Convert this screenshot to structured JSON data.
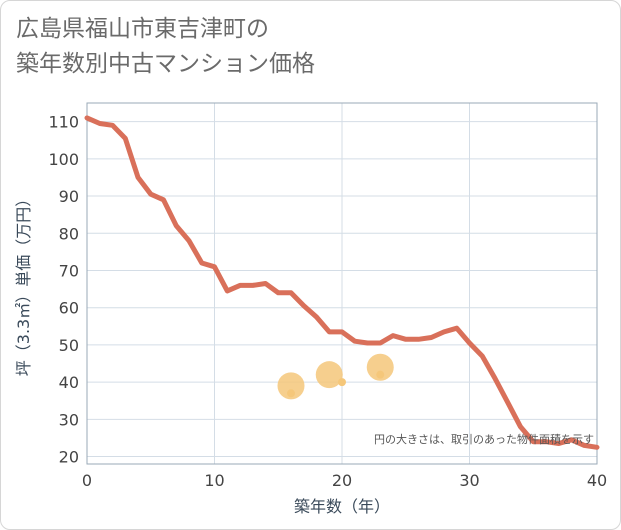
{
  "title_line1": "広島県福山市東吉津町の",
  "title_line2": "築年数別中古マンション価格",
  "colors": {
    "line": "#d9705a",
    "bubble": "#f5c77a",
    "grid": "#d4dde6",
    "plot_border": "#9aa9b7",
    "ytick_text": "#444444",
    "axis_title": "#3a4a5a"
  },
  "chart_data": {
    "type": "line",
    "xlabel": "築年数（年）",
    "ylabel": "坪（3.3㎡）単価（万円）",
    "xlim": [
      0,
      40
    ],
    "ylim": [
      18,
      115
    ],
    "xticks": [
      0,
      10,
      20,
      30,
      40
    ],
    "yticks": [
      20,
      30,
      40,
      50,
      60,
      70,
      80,
      90,
      100,
      110
    ],
    "grid": true,
    "series": [
      {
        "name": "坪単価",
        "x": [
          0,
          1,
          2,
          3,
          4,
          5,
          6,
          7,
          8,
          9,
          10,
          11,
          12,
          13,
          14,
          15,
          16,
          17,
          18,
          19,
          20,
          21,
          22,
          23,
          24,
          25,
          26,
          27,
          28,
          29,
          30,
          31,
          32,
          33,
          34,
          35,
          36,
          37,
          38,
          39,
          40
        ],
        "y": [
          111,
          109.5,
          109,
          105.5,
          95,
          90.5,
          89,
          82,
          78,
          72,
          71,
          64.5,
          66,
          66,
          66.5,
          64,
          64,
          60.5,
          57.5,
          53.5,
          53.5,
          51,
          50.5,
          50.5,
          52.5,
          51.5,
          51.5,
          52,
          53.5,
          54.5,
          50.5,
          47,
          41,
          34.5,
          28,
          24,
          24,
          23.5,
          24.5,
          23,
          22.5
        ]
      }
    ],
    "bubbles": [
      {
        "x": 16,
        "y": 39,
        "size": "large"
      },
      {
        "x": 16,
        "y": 37,
        "size": "small"
      },
      {
        "x": 19,
        "y": 42,
        "size": "large"
      },
      {
        "x": 20,
        "y": 40,
        "size": "small"
      },
      {
        "x": 23,
        "y": 44,
        "size": "large"
      },
      {
        "x": 23,
        "y": 42,
        "size": "small"
      }
    ],
    "annotation": "円の大きさは、取引のあった物件面積を示す"
  }
}
